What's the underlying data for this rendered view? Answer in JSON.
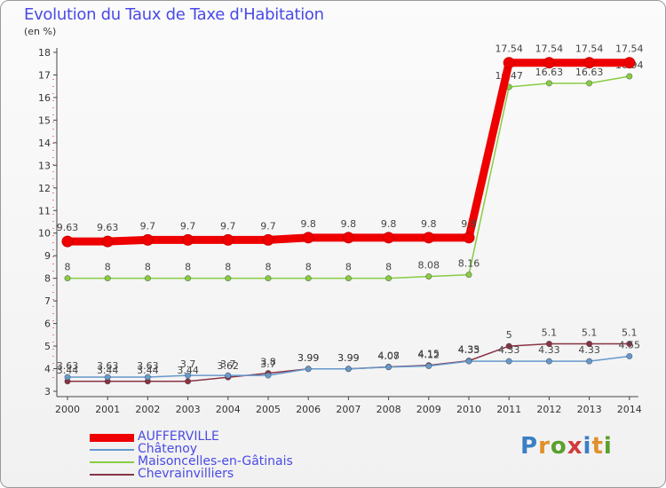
{
  "chart_data": {
    "type": "line",
    "title": "Evolution du Taux de Taxe d'Habitation",
    "subtitle": "(en %)",
    "x": [
      "2000",
      "2001",
      "2002",
      "2003",
      "2004",
      "2005",
      "2006",
      "2007",
      "2008",
      "2009",
      "2010",
      "2011",
      "2012",
      "2013",
      "2014"
    ],
    "ylim": [
      3,
      18
    ],
    "yticks": [
      3,
      4,
      5,
      6,
      7,
      8,
      9,
      10,
      11,
      12,
      13,
      14,
      15,
      16,
      17,
      18
    ],
    "grid": false,
    "legend_position": "bottom-left",
    "series": [
      {
        "name": "AUFFERVILLE",
        "color": "#ee0000",
        "values": [
          9.63,
          9.63,
          9.7,
          9.7,
          9.7,
          9.7,
          9.8,
          9.8,
          9.8,
          9.8,
          9.8,
          17.54,
          17.54,
          17.54,
          17.54
        ],
        "labels": [
          "9.63",
          "9.63",
          "9.7",
          "9.7",
          "9.7",
          "9.7",
          "9.8",
          "9.8",
          "9.8",
          "9.8",
          "9.8",
          "17.54",
          "17.54",
          "17.54",
          "17.54"
        ]
      },
      {
        "name": "Châtenoy",
        "color": "#6699cc",
        "values": [
          3.63,
          3.63,
          3.63,
          3.7,
          3.7,
          3.7,
          3.99,
          3.99,
          4.07,
          4.12,
          4.33,
          4.33,
          4.33,
          4.33,
          4.55
        ],
        "labels": [
          "3.63",
          "3.63",
          "3.63",
          "3.7",
          "3.7",
          "3.7",
          "3.99",
          "3.99",
          "4.07",
          "4.12",
          "4.33",
          "4.33",
          "4.33",
          "4.33",
          "4.55"
        ]
      },
      {
        "name": "Maisoncelles-en-Gâtinais",
        "color": "#88cc44",
        "values": [
          8,
          8,
          8,
          8,
          8,
          8,
          8,
          8,
          8,
          8.08,
          8.16,
          16.47,
          16.63,
          16.63,
          16.94
        ],
        "labels": [
          "8",
          "8",
          "8",
          "8",
          "8",
          "8",
          "8",
          "8",
          "8",
          "8.08",
          "8.16",
          "16.47",
          "16.63",
          "16.63",
          "16.94"
        ]
      },
      {
        "name": "Chevrainvilliers",
        "color": "#883344",
        "values": [
          3.44,
          3.44,
          3.44,
          3.44,
          3.62,
          3.8,
          3.99,
          3.99,
          4.08,
          4.15,
          4.35,
          5,
          5.1,
          5.1,
          5.1
        ],
        "labels": [
          "3.44",
          "3.44",
          "3.44",
          "3.44",
          "3.62",
          "3.8",
          "3.99",
          "3.99",
          "4.08",
          "4.15",
          "4.35",
          "5",
          "5.1",
          "5.1",
          "5.1"
        ]
      }
    ]
  },
  "logo": {
    "text": "Proxiti",
    "colors": [
      "#3a7fc4",
      "#e0902a",
      "#5aa02c",
      "#d03a3a",
      "#3a7fc4",
      "#e0902a",
      "#5aa02c"
    ]
  }
}
